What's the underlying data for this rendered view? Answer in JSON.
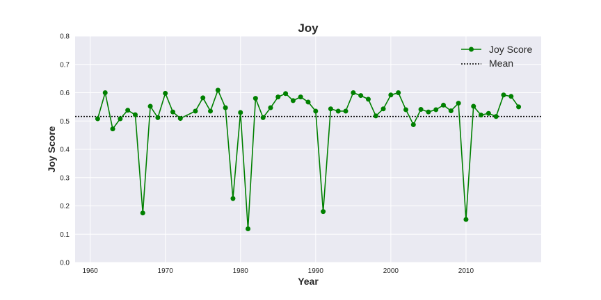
{
  "chart_data": {
    "type": "line",
    "title": "Joy",
    "xlabel": "Year",
    "ylabel": "Joy Score",
    "xlim": [
      1958,
      2020
    ],
    "ylim": [
      0.0,
      0.8
    ],
    "xticks": [
      1960,
      1970,
      1980,
      1990,
      2000,
      2010
    ],
    "yticks": [
      0.0,
      0.1,
      0.2,
      0.3,
      0.4,
      0.5,
      0.6,
      0.7,
      0.8
    ],
    "grid": true,
    "legend_position": "top-right",
    "mean": 0.516,
    "series": [
      {
        "name": "Joy Score",
        "color": "#008000",
        "marker": "circle",
        "x": [
          1961,
          1962,
          1963,
          1964,
          1965,
          1966,
          1967,
          1968,
          1969,
          1970,
          1971,
          1972,
          1974,
          1975,
          1976,
          1977,
          1978,
          1979,
          1980,
          1981,
          1982,
          1983,
          1984,
          1985,
          1986,
          1987,
          1988,
          1989,
          1990,
          1991,
          1992,
          1993,
          1994,
          1995,
          1996,
          1997,
          1998,
          1999,
          2000,
          2001,
          2002,
          2003,
          2004,
          2005,
          2006,
          2007,
          2008,
          2009,
          2010,
          2011,
          2012,
          2013,
          2014,
          2015,
          2016,
          2017
        ],
        "values": [
          0.508,
          0.6,
          0.472,
          0.508,
          0.538,
          0.522,
          0.175,
          0.552,
          0.512,
          0.598,
          0.532,
          0.509,
          0.535,
          0.582,
          0.535,
          0.609,
          0.547,
          0.226,
          0.53,
          0.119,
          0.58,
          0.512,
          0.547,
          0.585,
          0.597,
          0.572,
          0.585,
          0.567,
          0.535,
          0.18,
          0.543,
          0.535,
          0.535,
          0.6,
          0.59,
          0.577,
          0.518,
          0.543,
          0.592,
          0.6,
          0.54,
          0.487,
          0.541,
          0.532,
          0.54,
          0.556,
          0.536,
          0.563,
          0.152,
          0.552,
          0.521,
          0.527,
          0.516,
          0.592,
          0.587,
          0.55
        ]
      },
      {
        "name": "Mean",
        "color": "#000000",
        "style": "dotted"
      }
    ]
  }
}
